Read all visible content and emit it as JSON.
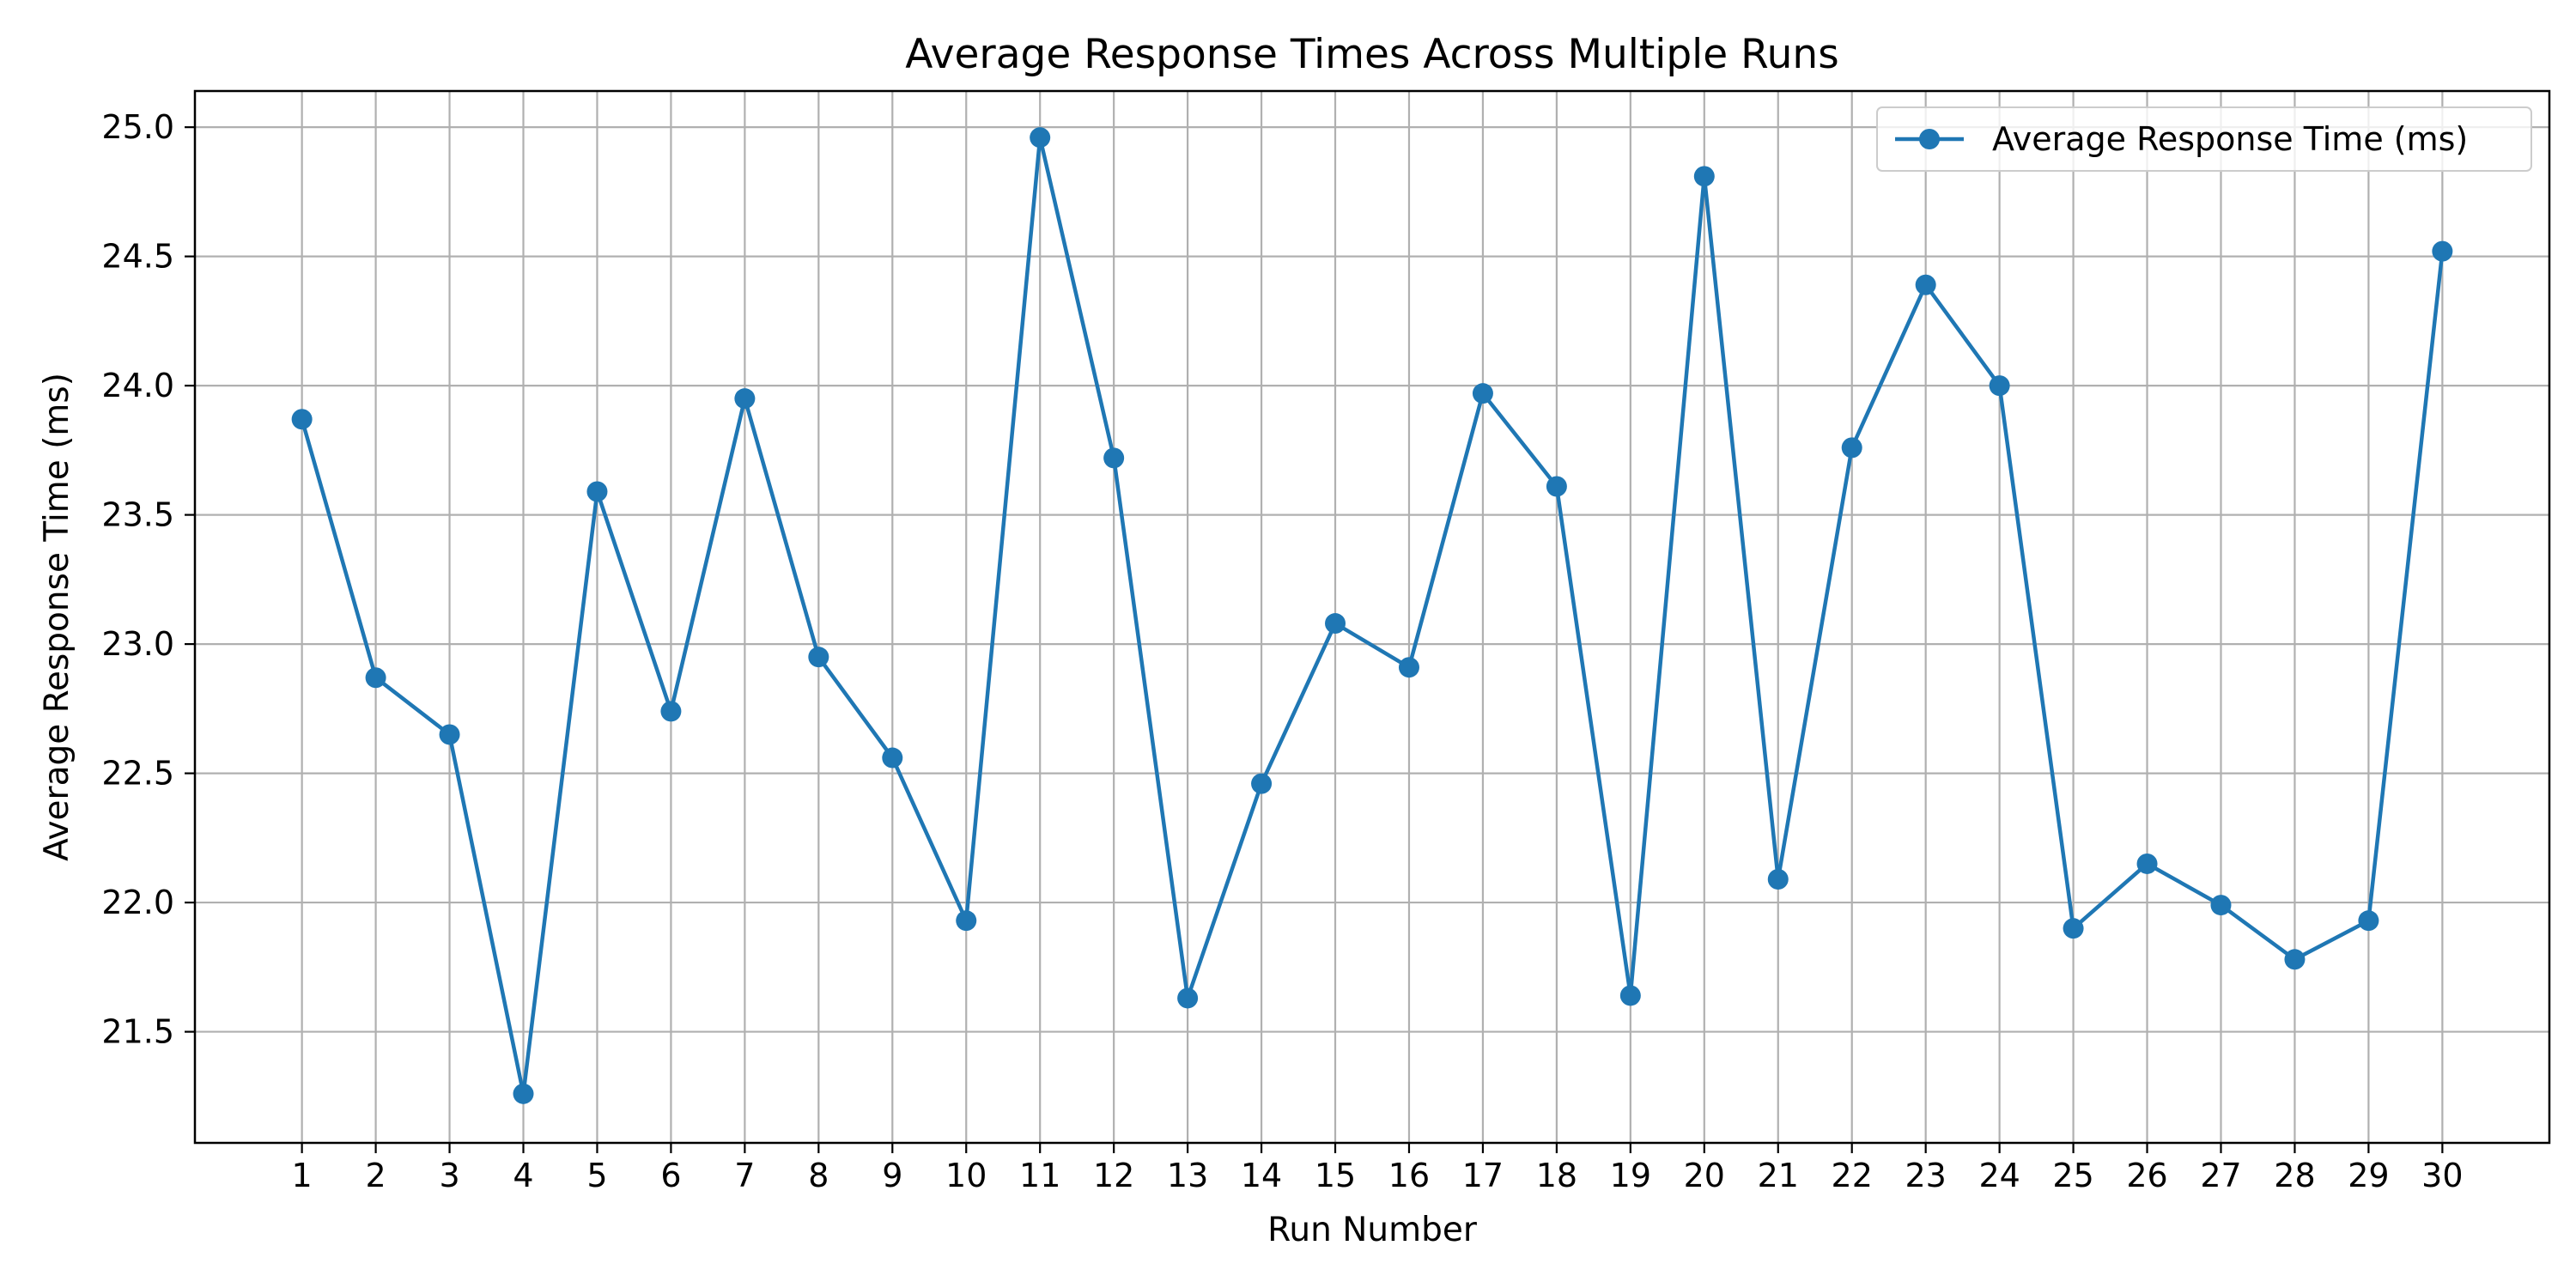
{
  "chart_data": {
    "type": "line",
    "title": "Average Response Times Across Multiple Runs",
    "xlabel": "Run Number",
    "ylabel": "Average Response Time (ms)",
    "x": [
      1,
      2,
      3,
      4,
      5,
      6,
      7,
      8,
      9,
      10,
      11,
      12,
      13,
      14,
      15,
      16,
      17,
      18,
      19,
      20,
      21,
      22,
      23,
      24,
      25,
      26,
      27,
      28,
      29,
      30
    ],
    "xticks": [
      "1",
      "2",
      "3",
      "4",
      "5",
      "6",
      "7",
      "8",
      "9",
      "10",
      "11",
      "12",
      "13",
      "14",
      "15",
      "16",
      "17",
      "18",
      "19",
      "20",
      "21",
      "22",
      "23",
      "24",
      "25",
      "26",
      "27",
      "28",
      "29",
      "30"
    ],
    "yticks": [
      "21.5",
      "22.0",
      "22.5",
      "23.0",
      "23.5",
      "24.0",
      "24.5",
      "25.0"
    ],
    "ytick_values": [
      21.5,
      22.0,
      22.5,
      23.0,
      23.5,
      24.0,
      24.5,
      25.0
    ],
    "xlim": [
      -0.45,
      31.45
    ],
    "ylim": [
      21.07,
      25.14
    ],
    "grid": true,
    "legend_position": "upper right",
    "series": [
      {
        "name": "Average Response Time (ms)",
        "color": "#1f77b4",
        "marker": "circle",
        "values": [
          23.87,
          22.87,
          22.65,
          21.26,
          23.59,
          22.74,
          23.95,
          22.95,
          22.56,
          21.93,
          24.96,
          23.72,
          21.63,
          22.46,
          23.08,
          22.91,
          23.97,
          23.61,
          21.64,
          24.81,
          22.09,
          23.76,
          24.39,
          24.0,
          21.9,
          22.15,
          21.99,
          21.78,
          21.93,
          24.52
        ]
      }
    ]
  }
}
